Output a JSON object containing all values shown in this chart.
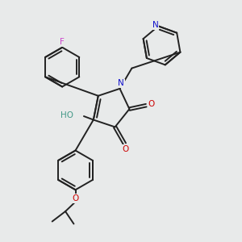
{
  "bg_color": "#e8eaea",
  "atom_colors": {
    "F": "#cc44cc",
    "N": "#1111cc",
    "O": "#cc0000",
    "H": "#449988",
    "C": "#000000"
  },
  "bond_color": "#222222",
  "bond_lw": 1.4
}
